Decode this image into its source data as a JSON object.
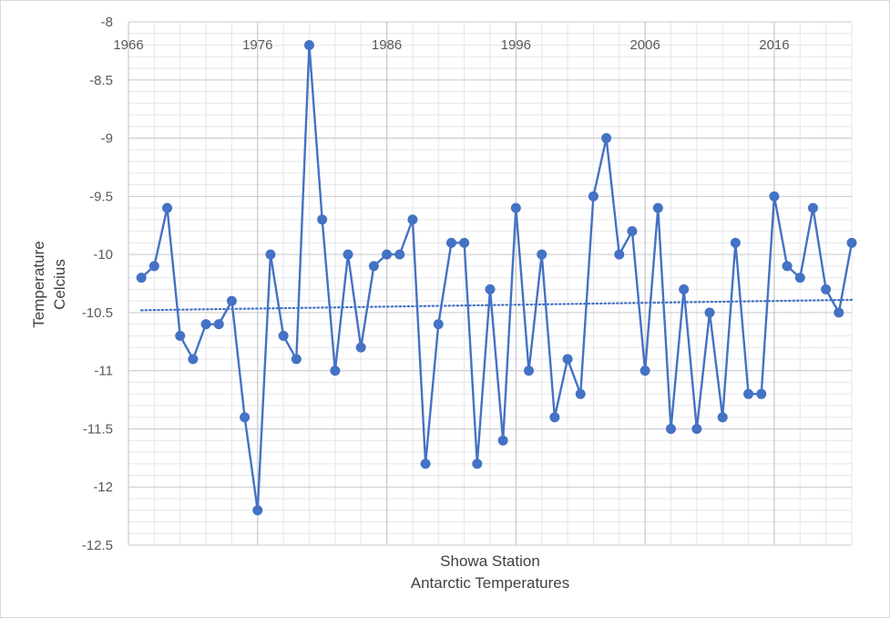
{
  "chart_data": {
    "type": "line",
    "title": "",
    "xlabel_lines": [
      "Showa Station",
      "Antarctic Temperatures"
    ],
    "ylabel_lines": [
      "Temperature",
      "Celcius"
    ],
    "x_tick_labels": [
      "1966",
      "1976",
      "1986",
      "1996",
      "2006",
      "2016"
    ],
    "x_ticks": [
      1966,
      1976,
      1986,
      1996,
      2006,
      2016
    ],
    "xlim": [
      1966,
      2022
    ],
    "y_tick_labels": [
      "-8",
      "-8.5",
      "-9",
      "-9.5",
      "-10",
      "-10.5",
      "-11",
      "-11.5",
      "-12",
      "-12.5"
    ],
    "y_ticks": [
      -8,
      -8.5,
      -9,
      -9.5,
      -10,
      -10.5,
      -11,
      -11.5,
      -12,
      -12.5
    ],
    "ylim": [
      -12.5,
      -8
    ],
    "grid": true,
    "series": [
      {
        "name": "Showa Station",
        "color": "#4472c4",
        "x": [
          1967,
          1968,
          1969,
          1970,
          1971,
          1972,
          1973,
          1974,
          1975,
          1976,
          1977,
          1978,
          1979,
          1980,
          1981,
          1982,
          1983,
          1984,
          1985,
          1986,
          1987,
          1988,
          1989,
          1990,
          1991,
          1992,
          1993,
          1994,
          1995,
          1996,
          1997,
          1998,
          1999,
          2000,
          2001,
          2002,
          2003,
          2004,
          2005,
          2006,
          2007,
          2008,
          2009,
          2010,
          2011,
          2012,
          2013,
          2014,
          2015,
          2016,
          2017,
          2018,
          2019,
          2020,
          2021,
          2022
        ],
        "values": [
          -10.2,
          -10.1,
          -9.6,
          -10.7,
          -10.9,
          -10.6,
          -10.6,
          -10.4,
          -11.4,
          -12.2,
          -10.0,
          -10.7,
          -10.9,
          -8.2,
          -9.7,
          -11.0,
          -10.0,
          -10.8,
          -10.1,
          -10.0,
          -10.0,
          -9.7,
          -11.8,
          -10.6,
          -9.9,
          -9.9,
          -11.8,
          -10.3,
          -11.6,
          -9.6,
          -11.0,
          -10.0,
          -11.4,
          -10.9,
          -11.2,
          -9.5,
          -9.0,
          -10.0,
          -9.8,
          -11.0,
          -9.6,
          -11.5,
          -10.3,
          -11.5,
          -10.5,
          -11.4,
          -9.9,
          -11.2,
          -11.2,
          -9.5,
          -10.1,
          -10.2,
          -9.6,
          -10.3,
          -10.5,
          -9.9
        ]
      }
    ],
    "trendline": {
      "type": "linear",
      "style": "dotted",
      "color": "#4472c4",
      "x": [
        1967,
        2022
      ],
      "values": [
        -10.48,
        -10.39
      ]
    }
  }
}
